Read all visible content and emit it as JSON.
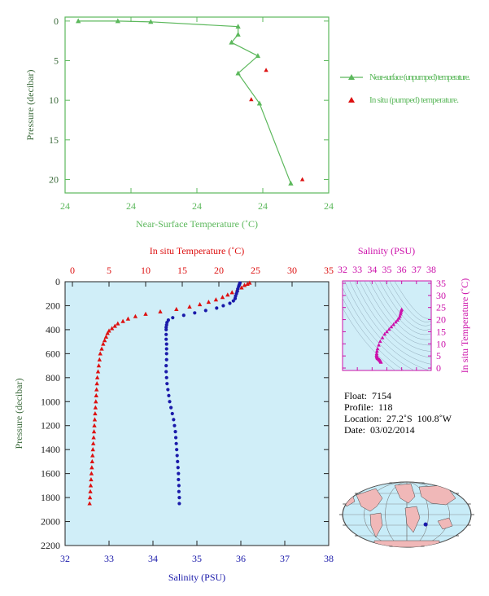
{
  "colors": {
    "green": "#5cb85c",
    "red": "#dd1111",
    "blue": "#1a1aaa",
    "magenta": "#cc11aa",
    "plot_bg": "#d0eef8",
    "axis": "#222222",
    "land": "#f0b8b8",
    "ocean": "#c8ecf8"
  },
  "footer_text": "",
  "chart_data": [
    {
      "id": "near-surface",
      "type": "line",
      "xlabel": "Near-Surface Temperature (˚C)",
      "ylabel": "Pressure (decibar)",
      "x_tick_labels": [
        "24",
        "24",
        "24",
        "24",
        "24"
      ],
      "y_ticks": [
        0,
        5,
        10,
        15,
        20
      ],
      "xlim": [
        24.0,
        25.6
      ],
      "ylim": [
        21.7,
        -0.5
      ],
      "y_inverted": true,
      "series": [
        {
          "name": "Near-surface (unpumped) temperature.",
          "marker": "triangle",
          "color": "#5cb85c",
          "x": [
            24.08,
            24.32,
            24.52,
            25.05,
            25.05,
            25.01,
            25.17,
            25.05,
            25.18,
            25.37
          ],
          "y": [
            0.0,
            0.0,
            0.1,
            0.7,
            1.7,
            2.7,
            4.4,
            6.6,
            10.4,
            20.5
          ]
        },
        {
          "name": "In situ (pumped) temperature.",
          "marker": "triangle",
          "color": "#dd1111",
          "x": [
            25.22,
            25.13,
            25.44
          ],
          "y": [
            6.2,
            9.9,
            20.0
          ]
        }
      ]
    },
    {
      "id": "profile",
      "type": "scatter",
      "top_label": "In situ Temperature (˚C)",
      "xlabel": "Salinity (PSU)",
      "ylabel": "Pressure (decibar)",
      "temp_ticks": [
        0,
        5,
        10,
        15,
        20,
        25,
        30,
        35
      ],
      "sal_ticks": [
        32,
        33,
        34,
        35,
        36,
        37,
        38
      ],
      "pres_ticks": [
        0,
        200,
        400,
        600,
        800,
        1000,
        1200,
        1400,
        1600,
        1800,
        2000,
        2200
      ],
      "temp_lim": [
        -1,
        35
      ],
      "sal_lim": [
        32,
        38
      ],
      "pres_lim": [
        0,
        2200
      ],
      "temperature": {
        "name": "In situ Temperature",
        "color": "#dd1111",
        "pressure": [
          10,
          20,
          30,
          50,
          70,
          90,
          110,
          130,
          150,
          170,
          190,
          210,
          230,
          250,
          270,
          290,
          310,
          330,
          350,
          370,
          390,
          410,
          430,
          460,
          490,
          520,
          560,
          600,
          650,
          700,
          750,
          800,
          850,
          900,
          950,
          1000,
          1050,
          1100,
          1150,
          1200,
          1250,
          1300,
          1350,
          1400,
          1450,
          1500,
          1550,
          1600,
          1650,
          1700,
          1750,
          1800,
          1850
        ],
        "temp": [
          24.2,
          23.9,
          23.5,
          23.1,
          22.5,
          21.8,
          21.2,
          20.5,
          19.6,
          18.6,
          17.4,
          16.0,
          14.2,
          12.0,
          10.0,
          8.6,
          7.6,
          6.9,
          6.2,
          5.8,
          5.4,
          5.0,
          4.8,
          4.6,
          4.4,
          4.2,
          4.0,
          3.8,
          3.7,
          3.6,
          3.5,
          3.4,
          3.35,
          3.3,
          3.25,
          3.2,
          3.15,
          3.1,
          3.05,
          3.0,
          2.95,
          2.9,
          2.85,
          2.8,
          2.75,
          2.7,
          2.65,
          2.6,
          2.55,
          2.5,
          2.45,
          2.4,
          2.35
        ]
      },
      "salinity": {
        "name": "Salinity",
        "color": "#1a1aaa",
        "pressure": [
          10,
          20,
          30,
          40,
          60,
          80,
          100,
          120,
          140,
          160,
          180,
          200,
          220,
          240,
          260,
          280,
          300,
          320,
          340,
          360,
          380,
          400,
          440,
          480,
          520,
          560,
          600,
          650,
          700,
          750,
          800,
          850,
          900,
          950,
          1000,
          1050,
          1100,
          1150,
          1200,
          1250,
          1300,
          1350,
          1400,
          1450,
          1500,
          1550,
          1600,
          1650,
          1700,
          1750,
          1800,
          1850
        ],
        "sal": [
          35.98,
          35.97,
          35.96,
          35.95,
          35.93,
          35.92,
          35.9,
          35.88,
          35.87,
          35.83,
          35.75,
          35.6,
          35.45,
          35.2,
          34.95,
          34.7,
          34.45,
          34.35,
          34.32,
          34.31,
          34.3,
          34.3,
          34.3,
          34.3,
          34.31,
          34.31,
          34.31,
          34.31,
          34.3,
          34.3,
          34.31,
          34.32,
          34.34,
          34.36,
          34.38,
          34.41,
          34.44,
          34.47,
          34.49,
          34.51,
          34.52,
          34.53,
          34.54,
          34.55,
          34.56,
          34.57,
          34.58,
          34.58,
          34.59,
          34.59,
          34.6,
          34.6
        ]
      }
    },
    {
      "id": "ts-diagram",
      "type": "scatter",
      "title": "Salinity (PSU)",
      "ylabel": "In situ Temperature (˚C)",
      "sal_ticks": [
        32,
        33,
        34,
        35,
        36,
        37,
        38
      ],
      "temp_ticks": [
        0,
        5,
        10,
        15,
        20,
        25,
        30,
        35
      ],
      "sal_lim": [
        32,
        38
      ],
      "temp_lim": [
        -1,
        36
      ],
      "color": "#cc11aa",
      "sal": [
        34.6,
        34.59,
        34.57,
        34.55,
        34.52,
        34.49,
        34.45,
        34.41,
        34.37,
        34.34,
        34.32,
        34.31,
        34.3,
        34.31,
        34.33,
        34.37,
        34.45,
        34.55,
        34.7,
        34.85,
        35.0,
        35.15,
        35.3,
        35.45,
        35.6,
        35.72,
        35.82,
        35.88,
        35.92,
        35.95,
        35.98,
        36.0
      ],
      "temp": [
        2.4,
        2.6,
        2.8,
        3.0,
        3.2,
        3.4,
        3.6,
        3.8,
        4.0,
        4.3,
        4.6,
        5.0,
        5.4,
        6.0,
        7.0,
        8.0,
        9.5,
        11.0,
        12.5,
        14.0,
        15.0,
        16.0,
        17.0,
        18.0,
        19.0,
        19.8,
        20.6,
        21.4,
        22.3,
        23.0,
        23.7,
        24.2
      ]
    }
  ],
  "legend": {
    "items": [
      {
        "label": "Near-surface (unpumped) temperature.",
        "color": "#5cb85c"
      },
      {
        "label": "In situ (pumped) temperature.",
        "color": "#dd1111"
      }
    ]
  },
  "float_info": {
    "float": "Float:  7154",
    "profile": "Profile:  118",
    "location": "Location:  27.2˚S  100.8˚W",
    "date": "Date:  03/02/2014"
  },
  "map": {
    "marker_color": "#1a1aaa",
    "marker_lon": -100.8,
    "marker_lat": -27.2
  }
}
